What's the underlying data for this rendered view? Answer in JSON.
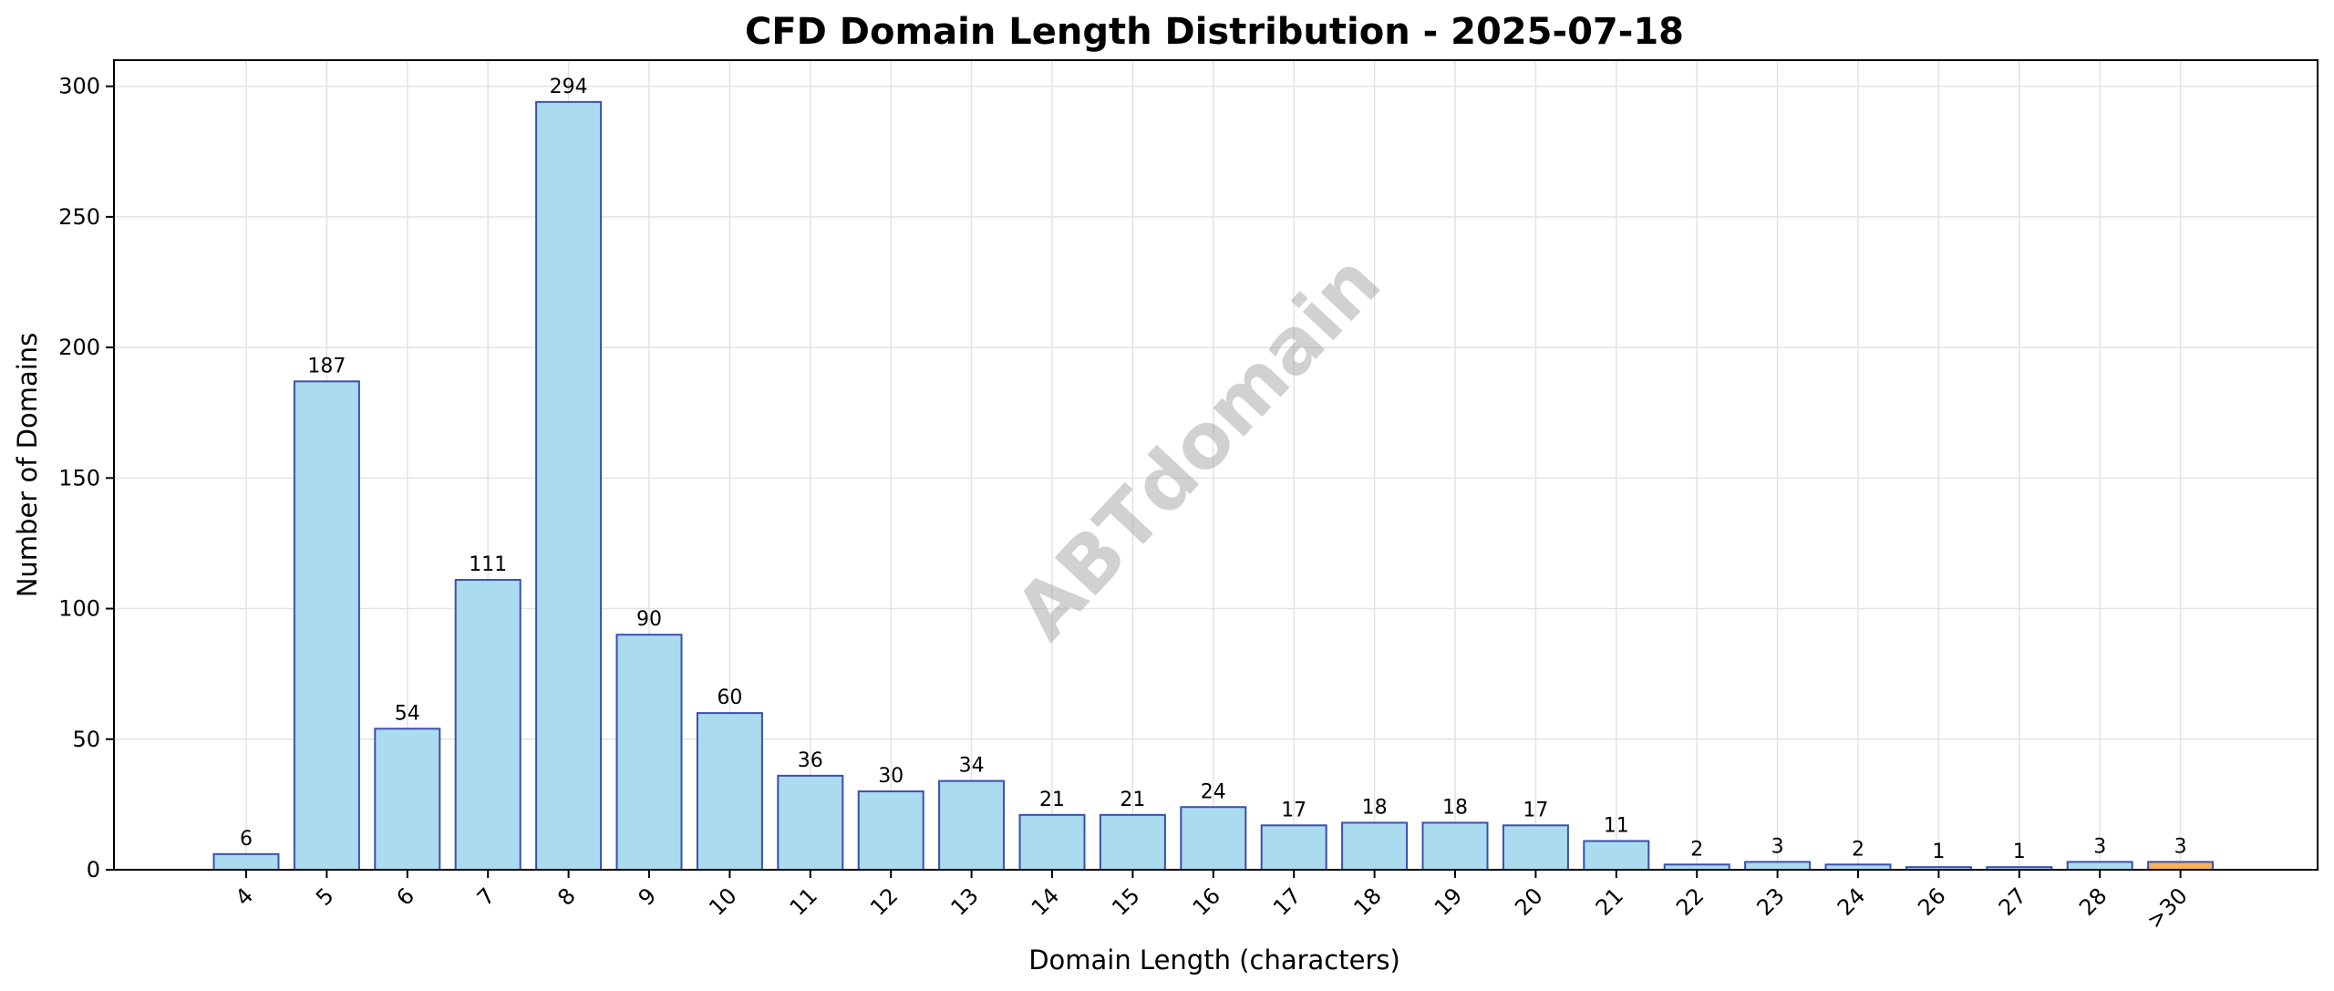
{
  "chart_data": {
    "type": "bar",
    "title": "CFD Domain Length Distribution - 2025-07-18",
    "xlabel": "Domain Length (characters)",
    "ylabel": "Number of Domains",
    "watermark": "ABTdomain",
    "categories": [
      "4",
      "5",
      "6",
      "7",
      "8",
      "9",
      "10",
      "11",
      "12",
      "13",
      "14",
      "15",
      "16",
      "17",
      "18",
      "19",
      "20",
      "21",
      "22",
      "23",
      "24",
      "26",
      "27",
      "28",
      ">30"
    ],
    "values": [
      6,
      187,
      54,
      111,
      294,
      90,
      60,
      36,
      30,
      34,
      21,
      21,
      24,
      17,
      18,
      18,
      17,
      11,
      2,
      3,
      2,
      1,
      1,
      3,
      3
    ],
    "ylim": [
      0,
      310
    ],
    "yticks": [
      0,
      50,
      100,
      150,
      200,
      250,
      300
    ],
    "grid": true,
    "colors": {
      "bar_fill": "#abdbef",
      "bar_edge": "#3b4fae",
      "highlight_fill": "#f7b25a",
      "highlight_edge": "#3b4fae",
      "highlight_category": ">30",
      "grid": "#e3e3e3"
    }
  }
}
